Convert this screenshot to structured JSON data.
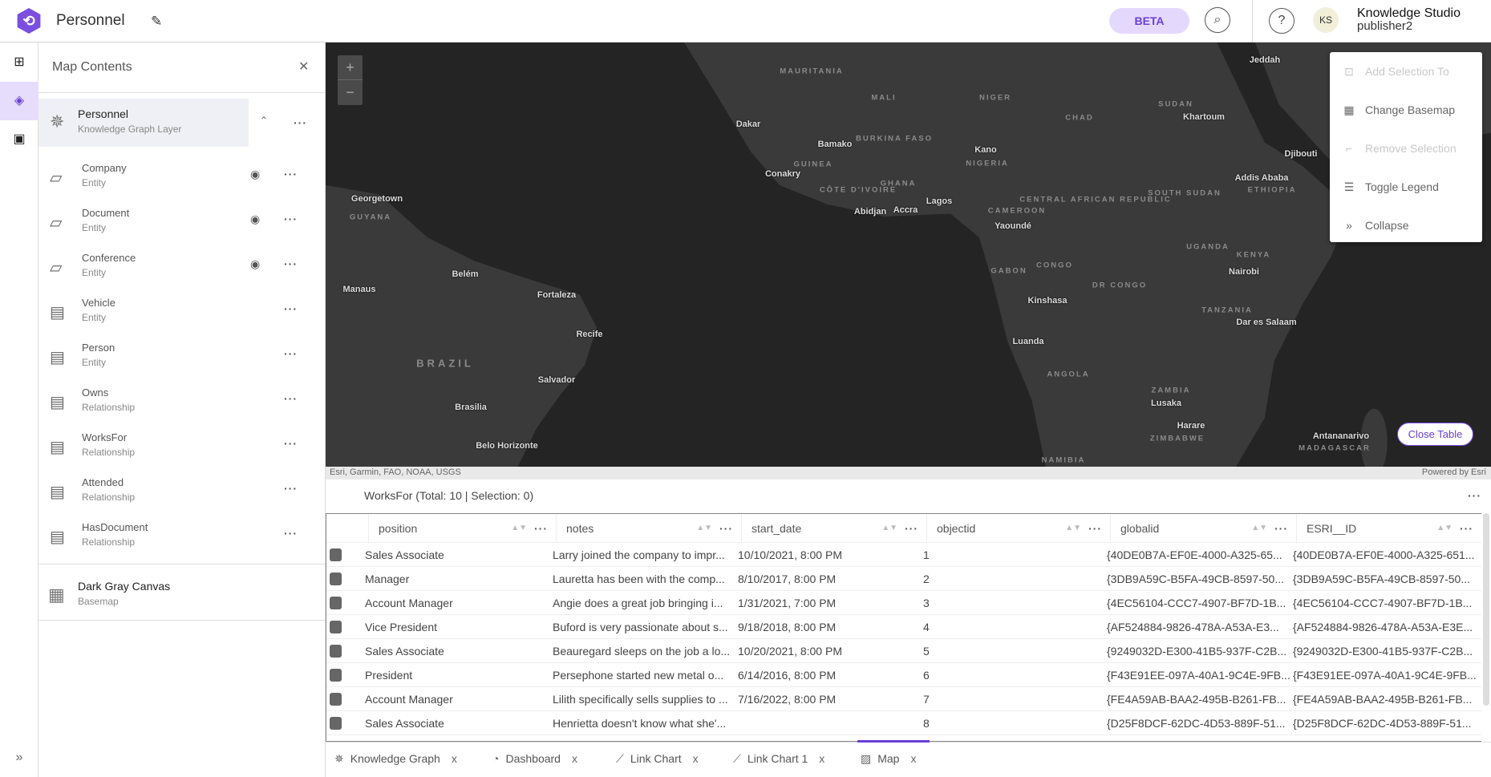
{
  "header": {
    "logo": "logo",
    "title": "Personnel",
    "beta": "BETA",
    "avatar_initials": "KS",
    "user_name": "Knowledge Studio",
    "user_role": "publisher2"
  },
  "panel": {
    "title": "Map Contents",
    "group": {
      "name": "Personnel",
      "type": "Knowledge Graph Layer"
    },
    "layers": [
      {
        "name": "Company",
        "type": "Entity",
        "icon": "polygon-icon",
        "visible": true
      },
      {
        "name": "Document",
        "type": "Entity",
        "icon": "polygon-icon",
        "visible": true
      },
      {
        "name": "Conference",
        "type": "Entity",
        "icon": "polygon-icon",
        "visible": true
      },
      {
        "name": "Vehicle",
        "type": "Entity",
        "icon": "table-icon",
        "visible": false
      },
      {
        "name": "Person",
        "type": "Entity",
        "icon": "table-icon",
        "visible": false
      },
      {
        "name": "Owns",
        "type": "Relationship",
        "icon": "table-icon",
        "visible": false
      },
      {
        "name": "WorksFor",
        "type": "Relationship",
        "icon": "table-icon",
        "visible": false
      },
      {
        "name": "Attended",
        "type": "Relationship",
        "icon": "table-icon",
        "visible": false
      },
      {
        "name": "HasDocument",
        "type": "Relationship",
        "icon": "table-icon",
        "visible": false
      }
    ],
    "basemap": {
      "name": "Dark Gray Canvas",
      "type": "Basemap"
    }
  },
  "map": {
    "zoom_in": "+",
    "zoom_out": "−",
    "attribution": "Esri, Garmin, FAO, NOAA, USGS",
    "powered_by": "Powered by Esri",
    "close_table": "Close Table",
    "cities": [
      "Dakar",
      "Bamako",
      "Conakry",
      "Abidjan",
      "Accra",
      "Lagos",
      "Kano",
      "Yaoundé",
      "Kinshasa",
      "Luanda",
      "Khartoum",
      "Jeddah",
      "Djibouti",
      "Addis Ababa",
      "Nairobi",
      "Dar es Salaam",
      "Lusaka",
      "Harare",
      "Antananarivo",
      "Georgetown",
      "Manaus",
      "Belém",
      "Fortaleza",
      "Recife",
      "Salvador",
      "Brasilia",
      "Belo Horizonte"
    ],
    "countries": [
      "MAURITANIA",
      "MALI",
      "NIGER",
      "CHAD",
      "SUDAN",
      "BRAZIL",
      "GUINEA",
      "BURKINA FASO",
      "GHANA",
      "NIGERIA",
      "CÔTE D'IVOIRE",
      "CAMEROON",
      "CENTRAL AFRICAN REPUBLIC",
      "SOUTH SUDAN",
      "ETHIOPIA",
      "UGANDA",
      "KENYA",
      "GABON",
      "CONGO",
      "DR CONGO",
      "TANZANIA",
      "ANGOLA",
      "ZAMBIA",
      "ZIMBABWE",
      "MADAGASCAR",
      "NAMIBIA",
      "GUYANA"
    ],
    "menu": [
      {
        "label": "Add Selection To",
        "icon": "add-selection-icon",
        "enabled": false
      },
      {
        "label": "Change Basemap",
        "icon": "basemap-icon",
        "enabled": true
      },
      {
        "label": "Remove Selection",
        "icon": "remove-selection-icon",
        "enabled": false
      },
      {
        "label": "Toggle Legend",
        "icon": "legend-icon",
        "enabled": true
      },
      {
        "label": "Collapse",
        "icon": "collapse-icon",
        "enabled": true
      }
    ]
  },
  "table": {
    "title": "WorksFor (Total: 10 | Selection: 0)",
    "columns": [
      "position",
      "notes",
      "start_date",
      "objectid",
      "globalid",
      "ESRI__ID"
    ],
    "rows": [
      [
        "Sales Associate",
        "Larry joined the company to impr...",
        "10/10/2021, 8:00 PM",
        "1",
        "{40DE0B7A-EF0E-4000-A325-65...",
        "{40DE0B7A-EF0E-4000-A325-651..."
      ],
      [
        "Manager",
        "Lauretta has been with the comp...",
        "8/10/2017, 8:00 PM",
        "2",
        "{3DB9A59C-B5FA-49CB-8597-50...",
        "{3DB9A59C-B5FA-49CB-8597-50..."
      ],
      [
        "Account Manager",
        "Angie does a great job bringing i...",
        "1/31/2021, 7:00 PM",
        "3",
        "{4EC56104-CCC7-4907-BF7D-1B...",
        "{4EC56104-CCC7-4907-BF7D-1B..."
      ],
      [
        "Vice President",
        "Buford is very passionate about s...",
        "9/18/2018, 8:00 PM",
        "4",
        "{AF524884-9826-478A-A53A-E3...",
        "{AF524884-9826-478A-A53A-E3E..."
      ],
      [
        "Sales Associate",
        "Beauregard sleeps on the job a lo...",
        "10/20/2021, 8:00 PM",
        "5",
        "{9249032D-E300-41B5-937F-C2B...",
        "{9249032D-E300-41B5-937F-C2B..."
      ],
      [
        "President",
        "Persephone started new metal o...",
        "6/14/2016, 8:00 PM",
        "6",
        "{F43E91EE-097A-40A1-9C4E-9FB...",
        "{F43E91EE-097A-40A1-9C4E-9FB..."
      ],
      [
        "Account Manager",
        "Lilith specifically sells supplies to ...",
        "7/16/2022, 8:00 PM",
        "7",
        "{FE4A59AB-BAA2-495B-B261-FB...",
        "{FE4A59AB-BAA2-495B-B261-FB..."
      ],
      [
        "Sales Associate",
        "Henrietta doesn't know what she'...",
        "",
        "8",
        "{D25F8DCF-62DC-4D53-889F-51...",
        "{D25F8DCF-62DC-4D53-889F-51..."
      ]
    ]
  },
  "tabs": [
    {
      "label": "Knowledge Graph",
      "icon": "knowledge-graph-icon"
    },
    {
      "label": "Dashboard",
      "icon": "dashboard-icon"
    },
    {
      "label": "Link Chart",
      "icon": "link-chart-icon"
    },
    {
      "label": "Link Chart 1",
      "icon": "link-chart-icon"
    },
    {
      "label": "Map",
      "icon": "map-icon",
      "active": true
    }
  ],
  "tab_close": "x",
  "colors": {
    "accent": "#6a3fd6",
    "beta_bg": "#e4d9fd",
    "map_land": "#3a3a3a",
    "map_water": "#242424"
  }
}
